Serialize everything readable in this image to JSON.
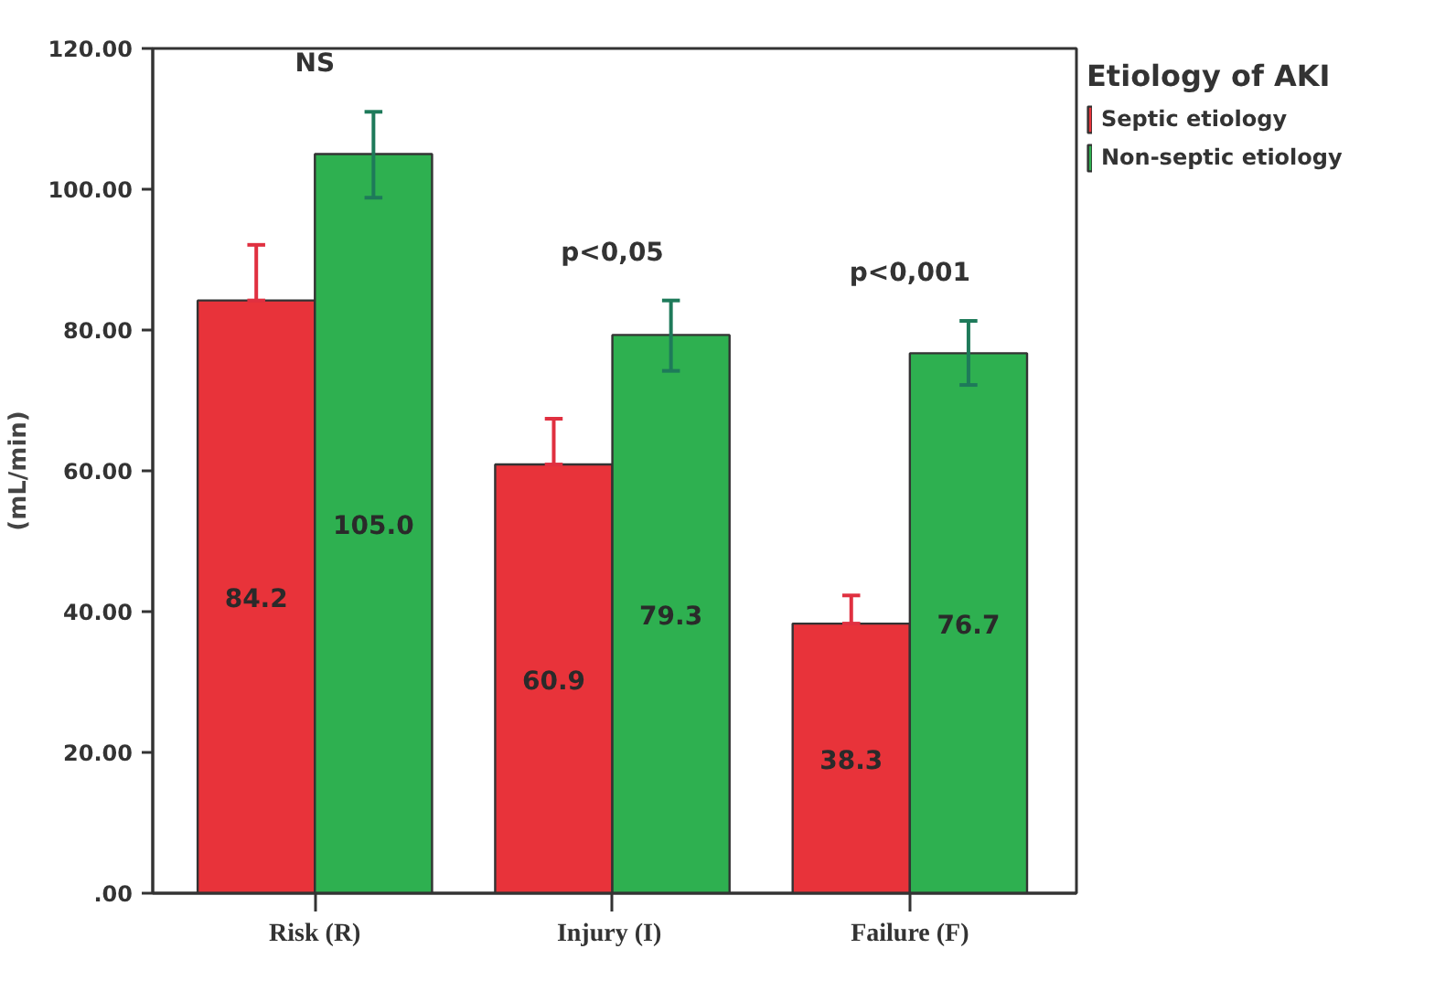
{
  "chart_data": {
    "type": "bar",
    "ylabel": "(mL/min)",
    "legend_title": "Etiology of AKI",
    "legend": "top right",
    "grid": false,
    "categories": [
      "Risk (R)",
      "Injury  (I)",
      "Failure (F)"
    ],
    "ylim": [
      0,
      120
    ],
    "yticks": [
      {
        "value": 0,
        "label": ".00"
      },
      {
        "value": 20,
        "label": "20.00"
      },
      {
        "value": 40,
        "label": "40.00"
      },
      {
        "value": 60,
        "label": "60.00"
      },
      {
        "value": 80,
        "label": "80.00"
      },
      {
        "value": 100,
        "label": "100.00"
      },
      {
        "value": 120,
        "label": "120.00"
      }
    ],
    "series": [
      {
        "name": "Septic etiology",
        "color": "#e8333a",
        "values": [
          84.2,
          60.9,
          38.3
        ],
        "value_labels": [
          "84.2",
          "60.9",
          "38.3"
        ],
        "errors": [
          [
            84.2,
            92.1
          ],
          [
            60.9,
            67.4
          ],
          [
            38.3,
            42.3
          ]
        ]
      },
      {
        "name": "Non-septic etiology",
        "color": "#2eb050",
        "values": [
          105.0,
          79.3,
          76.7
        ],
        "value_labels": [
          "105.0",
          "79.3",
          "76.7"
        ],
        "errors": [
          [
            98.8,
            111.0
          ],
          [
            74.2,
            84.2
          ],
          [
            72.2,
            81.3
          ]
        ]
      }
    ],
    "annotations": [
      "NS",
      "p<0,05",
      "p<0,001"
    ]
  }
}
